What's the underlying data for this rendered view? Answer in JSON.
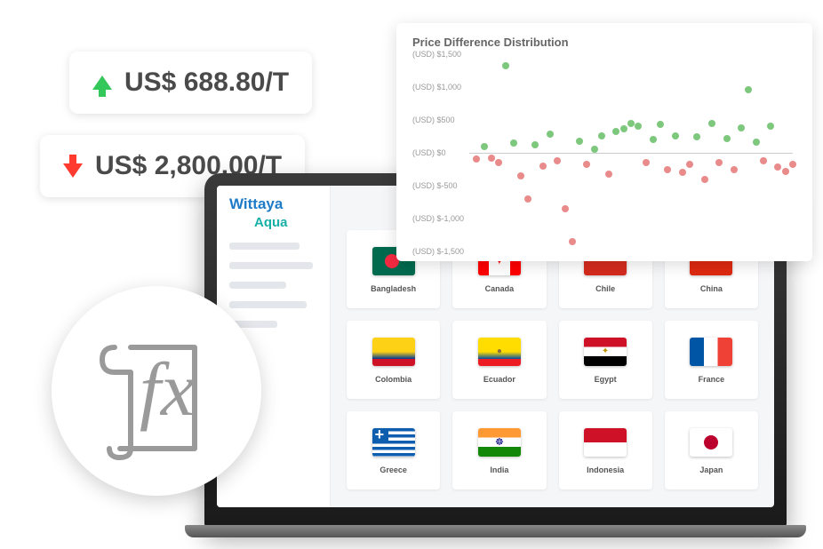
{
  "price_up": {
    "value": "US$ 688.80/T",
    "color": "#34c759"
  },
  "price_down": {
    "value": "US$ 2,800.00/T",
    "color": "#ff3b30"
  },
  "app": {
    "logo_primary": "Wittaya",
    "logo_secondary": "Aqua",
    "logo_primary_color": "#1e7bc8",
    "logo_secondary_color": "#17b0a8"
  },
  "countries": [
    {
      "name": "Bangladesh",
      "flag": "bangladesh"
    },
    {
      "name": "Canada",
      "flag": "canada"
    },
    {
      "name": "Chile",
      "flag": "chile"
    },
    {
      "name": "China",
      "flag": "china"
    },
    {
      "name": "Colombia",
      "flag": "colombia"
    },
    {
      "name": "Ecuador",
      "flag": "ecuador"
    },
    {
      "name": "Egypt",
      "flag": "egypt"
    },
    {
      "name": "France",
      "flag": "france"
    },
    {
      "name": "Greece",
      "flag": "greece"
    },
    {
      "name": "India",
      "flag": "india"
    },
    {
      "name": "Indonesia",
      "flag": "indonesia"
    },
    {
      "name": "Japan",
      "flag": "japan"
    }
  ],
  "chart": {
    "title": "Price Difference Distribution",
    "type": "scatter",
    "ylabel_prefix": "(USD)",
    "ylim": [
      -1500,
      1500
    ],
    "ytick_step": 500,
    "yticks": [
      1500,
      1000,
      500,
      0,
      -500,
      -1000,
      -1500
    ],
    "ytick_labels": [
      "$1,500",
      "$1,000",
      "$500",
      "$0",
      "$-500",
      "$-1,000",
      "$-1,500"
    ],
    "xlim": [
      0,
      44
    ],
    "positive_color": "#7dc87d",
    "negative_color": "#e98b8b",
    "zero_line_color": "#cccccc",
    "background_color": "#ffffff",
    "title_fontsize": 13,
    "label_fontsize": 9,
    "dot_radius": 4,
    "points": [
      {
        "x": 1,
        "y": -100
      },
      {
        "x": 2,
        "y": 100
      },
      {
        "x": 3,
        "y": -80
      },
      {
        "x": 4,
        "y": -150
      },
      {
        "x": 5,
        "y": 1320
      },
      {
        "x": 6,
        "y": 150
      },
      {
        "x": 7,
        "y": -350
      },
      {
        "x": 8,
        "y": -700
      },
      {
        "x": 9,
        "y": 120
      },
      {
        "x": 10,
        "y": -200
      },
      {
        "x": 11,
        "y": 280
      },
      {
        "x": 12,
        "y": -120
      },
      {
        "x": 13,
        "y": -850
      },
      {
        "x": 14,
        "y": -1350
      },
      {
        "x": 15,
        "y": 180
      },
      {
        "x": 16,
        "y": -180
      },
      {
        "x": 17,
        "y": 60
      },
      {
        "x": 18,
        "y": 260
      },
      {
        "x": 19,
        "y": -320
      },
      {
        "x": 20,
        "y": 330
      },
      {
        "x": 21,
        "y": 360
      },
      {
        "x": 22,
        "y": 450
      },
      {
        "x": 23,
        "y": 400
      },
      {
        "x": 24,
        "y": -150
      },
      {
        "x": 25,
        "y": 200
      },
      {
        "x": 26,
        "y": 430
      },
      {
        "x": 27,
        "y": -250
      },
      {
        "x": 28,
        "y": 260
      },
      {
        "x": 29,
        "y": -300
      },
      {
        "x": 30,
        "y": -180
      },
      {
        "x": 31,
        "y": 250
      },
      {
        "x": 32,
        "y": -400
      },
      {
        "x": 33,
        "y": 440
      },
      {
        "x": 34,
        "y": -150
      },
      {
        "x": 35,
        "y": 220
      },
      {
        "x": 36,
        "y": -260
      },
      {
        "x": 37,
        "y": 380
      },
      {
        "x": 38,
        "y": 960
      },
      {
        "x": 39,
        "y": 160
      },
      {
        "x": 40,
        "y": -120
      },
      {
        "x": 41,
        "y": 400
      },
      {
        "x": 42,
        "y": -220
      },
      {
        "x": 43,
        "y": -280
      },
      {
        "x": 44,
        "y": -180
      }
    ]
  },
  "fx_icon": {
    "label": "fx"
  }
}
